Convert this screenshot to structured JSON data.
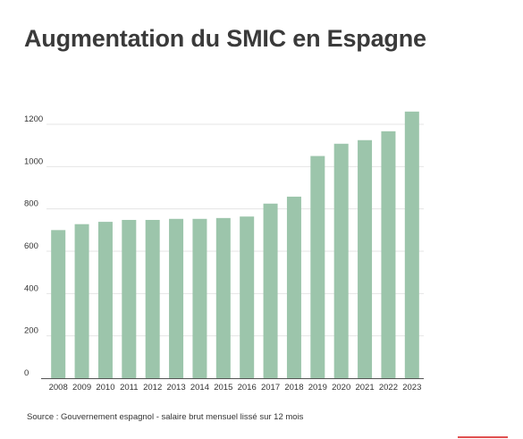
{
  "title": "Augmentation du SMIC en Espagne",
  "source": "Source : Gouvernement espagnol - salaire brut mensuel lissé sur 12 mois",
  "colors": {
    "bar": "#9cc5ab",
    "grid": "#e4e4e4",
    "axis": "#555555",
    "accent": "#e05050"
  },
  "chart_data": {
    "type": "bar",
    "title": "Augmentation du SMIC en Espagne",
    "xlabel": "",
    "ylabel": "",
    "ylim": [
      0,
      1200
    ],
    "yticks": [
      0,
      200,
      400,
      600,
      800,
      1000,
      1200
    ],
    "grid": true,
    "legend": "none",
    "categories": [
      "2008",
      "2009",
      "2010",
      "2011",
      "2012",
      "2013",
      "2014",
      "2015",
      "2016",
      "2017",
      "2018",
      "2019",
      "2020",
      "2021",
      "2022",
      "2023"
    ],
    "values": [
      700,
      728,
      739,
      748,
      748,
      753,
      753,
      757,
      764,
      825,
      858,
      1050,
      1108,
      1125,
      1167,
      1260
    ]
  }
}
